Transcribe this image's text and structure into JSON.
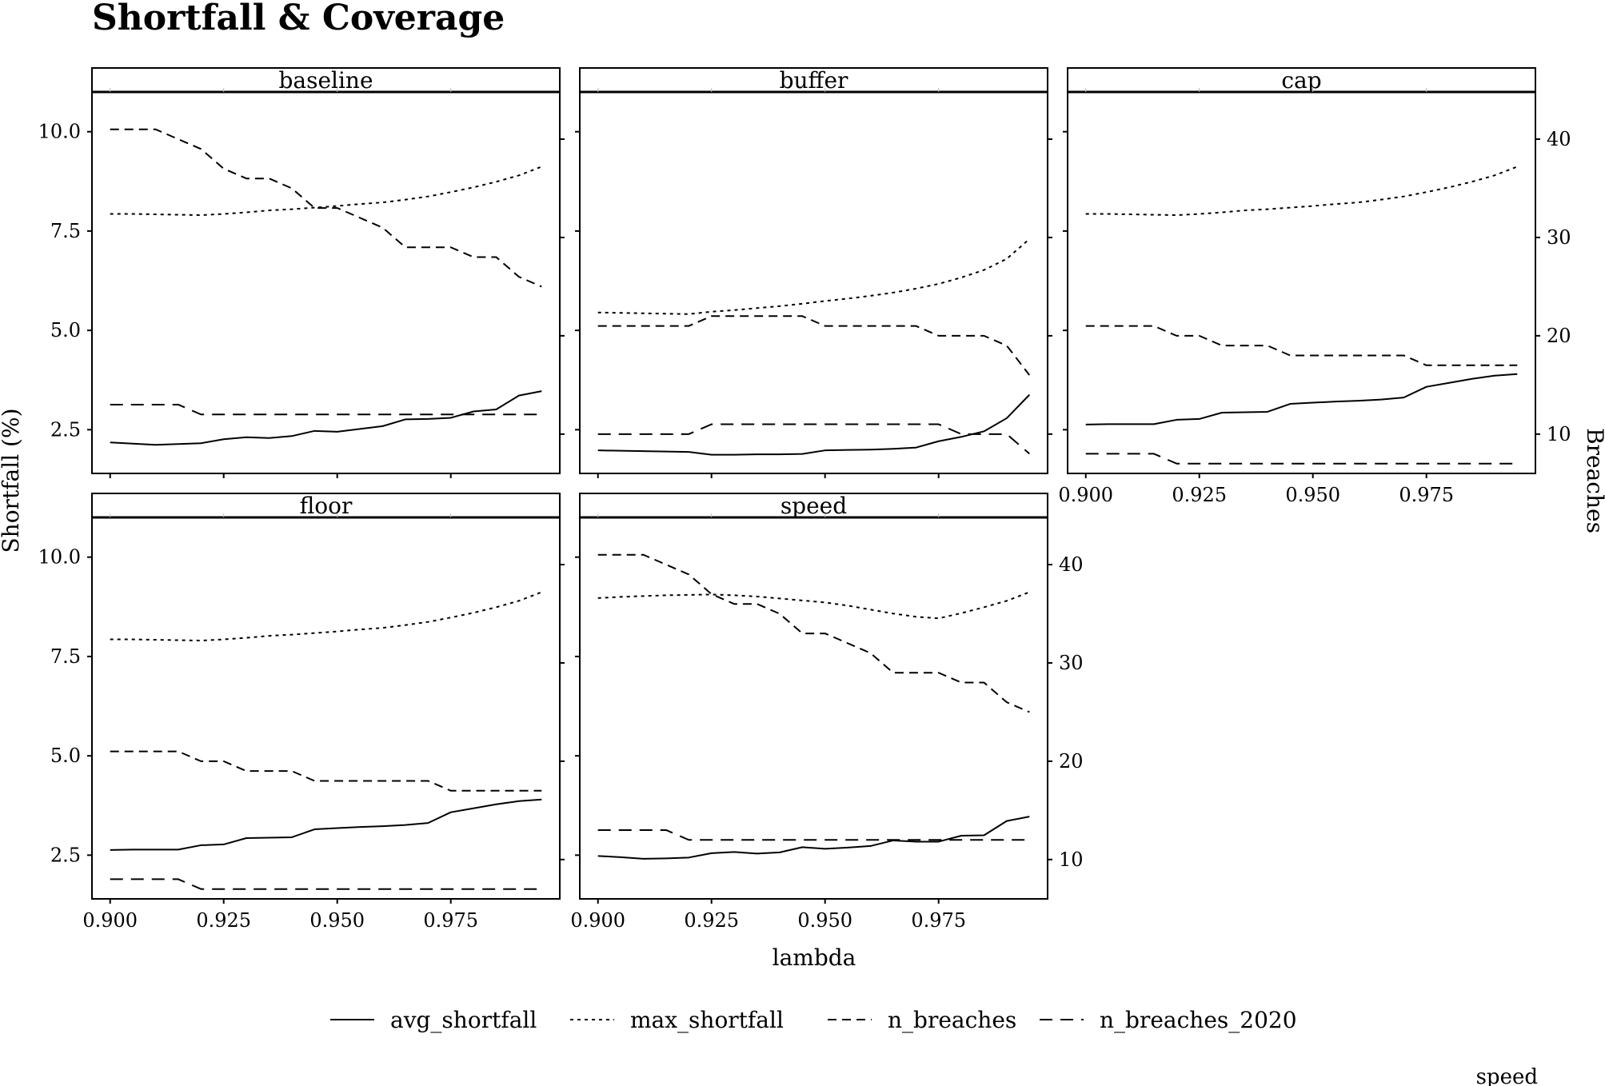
{
  "title": "Shortfall & Coverage",
  "chart_data": {
    "type": "line",
    "title": "Shortfall & Coverage",
    "xlabel": "lambda",
    "ylabel": "Shortfall (%)",
    "y2label": "Breaches",
    "xlim": [
      0.896,
      0.999
    ],
    "ylim": [
      1.4,
      11.0
    ],
    "y2lim": [
      6.0,
      44.8
    ],
    "x_ticks": [
      "0.900",
      "0.925",
      "0.950",
      "0.975"
    ],
    "x_tick_values": [
      0.9,
      0.925,
      0.95,
      0.975
    ],
    "y_ticks": [
      "2.5",
      "5.0",
      "7.5",
      "10.0"
    ],
    "y_tick_values": [
      2.5,
      5.0,
      7.5,
      10.0
    ],
    "y2_ticks": [
      "10",
      "20",
      "30",
      "40"
    ],
    "y2_tick_values": [
      10,
      20,
      30,
      40
    ],
    "grid": false,
    "legend_position": "bottom",
    "x": [
      0.9,
      0.905,
      0.91,
      0.915,
      0.92,
      0.925,
      0.93,
      0.935,
      0.94,
      0.945,
      0.95,
      0.955,
      0.96,
      0.965,
      0.97,
      0.975,
      0.98,
      0.985,
      0.99,
      0.995
    ],
    "legend": [
      {
        "name": "avg_shortfall",
        "dash": "solid"
      },
      {
        "name": "max_shortfall",
        "dash": "dotted"
      },
      {
        "name": "n_breaches",
        "dash": "dashed"
      },
      {
        "name": "n_breaches_2020",
        "dash": "longdash"
      }
    ],
    "panels": [
      {
        "name": "baseline",
        "series": [
          {
            "name": "avg_shortfall",
            "axis": "left",
            "values": [
              2.18,
              2.15,
              2.12,
              2.14,
              2.16,
              2.26,
              2.31,
              2.29,
              2.34,
              2.47,
              2.45,
              2.52,
              2.59,
              2.76,
              2.77,
              2.8,
              2.96,
              3.01,
              3.36,
              3.47
            ]
          },
          {
            "name": "max_shortfall",
            "axis": "left",
            "values": [
              7.93,
              7.93,
              7.92,
              7.91,
              7.9,
              7.93,
              7.97,
              8.02,
              8.05,
              8.09,
              8.13,
              8.18,
              8.22,
              8.29,
              8.37,
              8.48,
              8.6,
              8.74,
              8.9,
              9.12
            ]
          },
          {
            "name": "n_breaches",
            "axis": "right",
            "values": [
              41,
              41,
              41,
              40,
              39,
              37,
              36,
              36,
              35,
              33,
              33,
              32,
              31,
              29,
              29,
              29,
              28,
              28,
              26,
              25
            ]
          },
          {
            "name": "n_breaches_2020",
            "axis": "right",
            "values": [
              13,
              13,
              13,
              13,
              12,
              12,
              12,
              12,
              12,
              12,
              12,
              12,
              12,
              12,
              12,
              12,
              12,
              12,
              12,
              12
            ]
          }
        ]
      },
      {
        "name": "buffer",
        "series": [
          {
            "name": "avg_shortfall",
            "axis": "left",
            "values": [
              1.98,
              1.97,
              1.96,
              1.95,
              1.94,
              1.87,
              1.87,
              1.88,
              1.88,
              1.89,
              1.98,
              1.99,
              2.0,
              2.02,
              2.05,
              2.21,
              2.32,
              2.46,
              2.79,
              3.38
            ]
          },
          {
            "name": "max_shortfall",
            "axis": "left",
            "values": [
              5.45,
              5.44,
              5.43,
              5.42,
              5.41,
              5.47,
              5.51,
              5.56,
              5.61,
              5.67,
              5.74,
              5.8,
              5.87,
              5.95,
              6.05,
              6.17,
              6.33,
              6.52,
              6.8,
              7.3
            ]
          },
          {
            "name": "n_breaches",
            "axis": "right",
            "values": [
              21,
              21,
              21,
              21,
              21,
              22,
              22,
              22,
              22,
              22,
              21,
              21,
              21,
              21,
              21,
              20,
              20,
              20,
              19,
              16
            ]
          },
          {
            "name": "n_breaches_2020",
            "axis": "right",
            "values": [
              10,
              10,
              10,
              10,
              10,
              11,
              11,
              11,
              11,
              11,
              11,
              11,
              11,
              11,
              11,
              11,
              10,
              10,
              10,
              8
            ]
          }
        ]
      },
      {
        "name": "cap",
        "series": [
          {
            "name": "avg_shortfall",
            "axis": "left",
            "values": [
              2.63,
              2.64,
              2.64,
              2.64,
              2.75,
              2.77,
              2.93,
              2.94,
              2.95,
              3.15,
              3.18,
              3.21,
              3.23,
              3.26,
              3.31,
              3.58,
              3.68,
              3.78,
              3.86,
              3.9
            ]
          },
          {
            "name": "max_shortfall",
            "axis": "left",
            "values": [
              7.93,
              7.93,
              7.92,
              7.91,
              7.9,
              7.93,
              7.97,
              8.02,
              8.05,
              8.09,
              8.13,
              8.18,
              8.22,
              8.29,
              8.37,
              8.48,
              8.6,
              8.74,
              8.9,
              9.12
            ]
          },
          {
            "name": "n_breaches",
            "axis": "right",
            "values": [
              21,
              21,
              21,
              21,
              20,
              20,
              19,
              19,
              19,
              18,
              18,
              18,
              18,
              18,
              18,
              17,
              17,
              17,
              17,
              17
            ]
          },
          {
            "name": "n_breaches_2020",
            "axis": "right",
            "values": [
              8,
              8,
              8,
              8,
              7,
              7,
              7,
              7,
              7,
              7,
              7,
              7,
              7,
              7,
              7,
              7,
              7,
              7,
              7,
              7
            ]
          }
        ]
      },
      {
        "name": "floor",
        "series": [
          {
            "name": "avg_shortfall",
            "axis": "left",
            "values": [
              2.63,
              2.64,
              2.64,
              2.64,
              2.75,
              2.77,
              2.93,
              2.94,
              2.95,
              3.15,
              3.18,
              3.21,
              3.23,
              3.26,
              3.31,
              3.58,
              3.68,
              3.78,
              3.86,
              3.9
            ]
          },
          {
            "name": "max_shortfall",
            "axis": "left",
            "values": [
              7.93,
              7.93,
              7.92,
              7.91,
              7.9,
              7.93,
              7.97,
              8.02,
              8.05,
              8.09,
              8.13,
              8.18,
              8.22,
              8.29,
              8.37,
              8.48,
              8.6,
              8.74,
              8.9,
              9.12
            ]
          },
          {
            "name": "n_breaches",
            "axis": "right",
            "values": [
              21,
              21,
              21,
              21,
              20,
              20,
              19,
              19,
              19,
              18,
              18,
              18,
              18,
              18,
              18,
              17,
              17,
              17,
              17,
              17
            ]
          },
          {
            "name": "n_breaches_2020",
            "axis": "right",
            "values": [
              8,
              8,
              8,
              8,
              7,
              7,
              7,
              7,
              7,
              7,
              7,
              7,
              7,
              7,
              7,
              7,
              7,
              7,
              7,
              7
            ]
          }
        ]
      },
      {
        "name": "speed",
        "series": [
          {
            "name": "avg_shortfall",
            "axis": "left",
            "values": [
              2.48,
              2.45,
              2.41,
              2.42,
              2.44,
              2.55,
              2.58,
              2.54,
              2.57,
              2.7,
              2.66,
              2.69,
              2.73,
              2.87,
              2.84,
              2.84,
              2.99,
              3.0,
              3.36,
              3.47
            ]
          },
          {
            "name": "max_shortfall",
            "axis": "left",
            "values": [
              8.97,
              9.0,
              9.02,
              9.04,
              9.05,
              9.06,
              9.04,
              9.01,
              8.96,
              8.91,
              8.86,
              8.78,
              8.68,
              8.58,
              8.5,
              8.46,
              8.59,
              8.74,
              8.9,
              9.12
            ]
          },
          {
            "name": "n_breaches",
            "axis": "right",
            "values": [
              41,
              41,
              41,
              40,
              39,
              37,
              36,
              36,
              35,
              33,
              33,
              32,
              31,
              29,
              29,
              29,
              28,
              28,
              26,
              25
            ]
          },
          {
            "name": "n_breaches_2020",
            "axis": "right",
            "values": [
              13,
              13,
              13,
              13,
              12,
              12,
              12,
              12,
              12,
              12,
              12,
              12,
              12,
              12,
              12,
              12,
              12,
              12,
              12,
              12
            ]
          }
        ]
      }
    ]
  },
  "footer_note": "speed"
}
